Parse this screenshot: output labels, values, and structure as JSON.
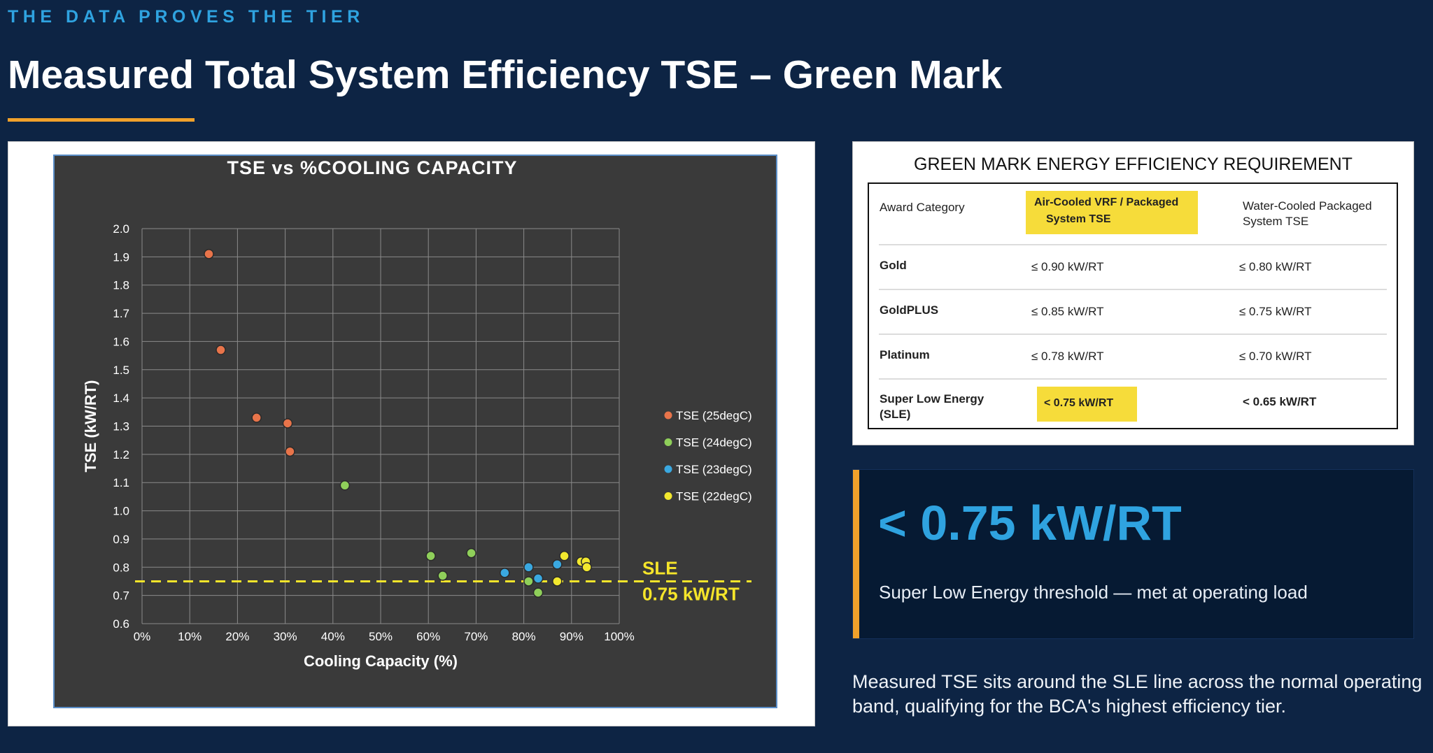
{
  "header": {
    "eyebrow": "THE DATA PROVES THE TIER",
    "title": "Measured Total System Efficiency TSE – Green Mark"
  },
  "colors": {
    "background": "#0d2444",
    "accent_orange": "#f0a12b",
    "accent_blue": "#2fa3e0",
    "plot_background": "#3a3a3a",
    "sle_line": "#f5e52a",
    "highlight": "#f6dc3a"
  },
  "chart_data": {
    "type": "scatter",
    "title": "TSE vs %COOLING CAPACITY",
    "xlabel": "Cooling Capacity (%)",
    "ylabel": "TSE (kW/RT)",
    "xlim": [
      0,
      100
    ],
    "ylim": [
      0.6,
      2.0
    ],
    "x_ticks": [
      "0%",
      "10%",
      "20%",
      "30%",
      "40%",
      "50%",
      "60%",
      "70%",
      "80%",
      "90%",
      "100%"
    ],
    "y_ticks": [
      "0.6",
      "0.7",
      "0.8",
      "0.9",
      "1.0",
      "1.1",
      "1.2",
      "1.3",
      "1.4",
      "1.5",
      "1.6",
      "1.7",
      "1.8",
      "1.9",
      "2.0"
    ],
    "grid": true,
    "legend_position": "right",
    "series": [
      {
        "name": "TSE (25degC)",
        "color": "#e8744a",
        "points": [
          [
            14,
            1.91
          ],
          [
            16.5,
            1.57
          ],
          [
            24,
            1.33
          ],
          [
            30.5,
            1.31
          ],
          [
            31,
            1.21
          ]
        ]
      },
      {
        "name": "TSE (24degC)",
        "color": "#8fcf5a",
        "points": [
          [
            42.5,
            1.09
          ],
          [
            60.5,
            0.84
          ],
          [
            63,
            0.77
          ],
          [
            69,
            0.85
          ],
          [
            81,
            0.75
          ],
          [
            83,
            0.71
          ]
        ]
      },
      {
        "name": "TSE (23degC)",
        "color": "#3aa8e0",
        "points": [
          [
            76,
            0.78
          ],
          [
            81,
            0.8
          ],
          [
            83,
            0.76
          ],
          [
            87,
            0.81
          ]
        ]
      },
      {
        "name": "TSE (22degC)",
        "color": "#f2e82e",
        "points": [
          [
            87,
            0.75
          ],
          [
            88.5,
            0.84
          ],
          [
            92,
            0.82
          ],
          [
            93,
            0.82
          ],
          [
            93.2,
            0.8
          ]
        ]
      }
    ],
    "reference_line": {
      "y": 0.75,
      "label_top": "SLE",
      "label_bottom": "0.75 kW/RT",
      "style": "dashed",
      "color": "#f5e52a"
    }
  },
  "requirements": {
    "title": "GREEN MARK ENERGY EFFICIENCY REQUIREMENT",
    "headers": [
      "Award Category",
      "Air-Cooled VRF / Packaged System TSE",
      "Water-Cooled Packaged System TSE"
    ],
    "header_col2_lines": [
      "Air-Cooled VRF / Packaged",
      "System TSE"
    ],
    "header_col3_lines": [
      "Water-Cooled Packaged",
      "System TSE"
    ],
    "rows": [
      {
        "category": "Gold",
        "air": "≤ 0.90 kW/RT",
        "water": "≤ 0.80 kW/RT"
      },
      {
        "category": "GoldPLUS",
        "air": "≤ 0.85 kW/RT",
        "water": "≤ 0.75 kW/RT"
      },
      {
        "category": "Platinum",
        "air": "≤ 0.78 kW/RT",
        "water": "≤ 0.70 kW/RT"
      },
      {
        "category": "Super Low Energy",
        "category_line2": "(SLE)",
        "air": "< 0.75 kW/RT",
        "water": "< 0.65 kW/RT"
      }
    ]
  },
  "stat": {
    "value": "< 0.75 kW/RT",
    "label": "Super Low Energy threshold — met at operating load"
  },
  "note": "Measured TSE sits around the SLE line across the normal operating band, qualifying for the BCA's highest efficiency tier."
}
